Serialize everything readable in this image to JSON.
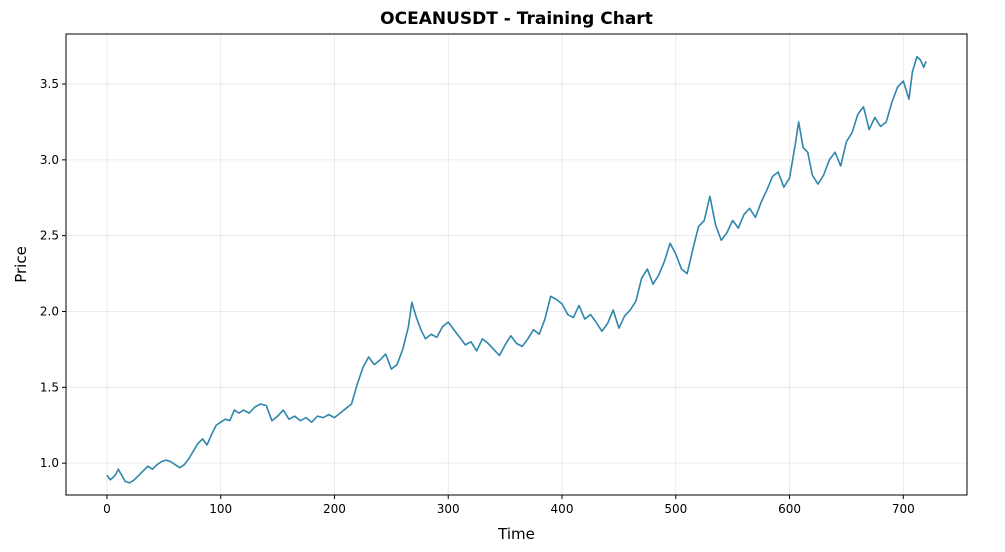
{
  "chart_data": {
    "type": "line",
    "title": "OCEANUSDT - Training Chart",
    "xlabel": "Time",
    "ylabel": "Price",
    "xlim": [
      -36,
      756
    ],
    "ylim": [
      0.79,
      3.83
    ],
    "x_ticks": [
      0,
      100,
      200,
      300,
      400,
      500,
      600,
      700
    ],
    "x_tick_labels": [
      "0",
      "100",
      "200",
      "300",
      "400",
      "500",
      "600",
      "700"
    ],
    "y_ticks": [
      1.0,
      1.5,
      2.0,
      2.5,
      3.0,
      3.5
    ],
    "y_tick_labels": [
      "1.0",
      "1.5",
      "2.0",
      "2.5",
      "3.0",
      "3.5"
    ],
    "grid": true,
    "series": [
      {
        "color": "#2E86AB",
        "x": [
          0,
          3,
          6,
          8,
          10,
          13,
          16,
          20,
          24,
          28,
          32,
          36,
          40,
          44,
          48,
          52,
          56,
          60,
          64,
          68,
          72,
          76,
          80,
          84,
          88,
          92,
          96,
          100,
          104,
          108,
          112,
          116,
          120,
          125,
          130,
          135,
          140,
          145,
          150,
          155,
          160,
          165,
          170,
          175,
          180,
          185,
          190,
          195,
          200,
          205,
          210,
          215,
          220,
          225,
          230,
          235,
          240,
          245,
          250,
          255,
          260,
          265,
          268,
          272,
          276,
          280,
          285,
          290,
          295,
          300,
          305,
          310,
          315,
          320,
          325,
          330,
          335,
          340,
          345,
          350,
          355,
          360,
          365,
          370,
          375,
          380,
          385,
          390,
          395,
          400,
          405,
          410,
          415,
          420,
          425,
          430,
          435,
          440,
          445,
          450,
          455,
          460,
          465,
          470,
          475,
          480,
          485,
          490,
          495,
          500,
          505,
          510,
          515,
          520,
          525,
          530,
          535,
          540,
          545,
          550,
          555,
          560,
          565,
          570,
          575,
          580,
          585,
          590,
          595,
          600,
          605,
          608,
          612,
          616,
          620,
          625,
          630,
          635,
          640,
          645,
          650,
          655,
          660,
          665,
          670,
          675,
          680,
          685,
          690,
          695,
          700,
          705,
          708,
          712,
          715,
          718,
          720
        ],
        "y": [
          0.92,
          0.89,
          0.91,
          0.93,
          0.96,
          0.92,
          0.88,
          0.87,
          0.89,
          0.92,
          0.95,
          0.98,
          0.96,
          0.99,
          1.01,
          1.02,
          1.01,
          0.99,
          0.97,
          0.99,
          1.03,
          1.08,
          1.13,
          1.16,
          1.12,
          1.19,
          1.25,
          1.27,
          1.29,
          1.28,
          1.35,
          1.33,
          1.35,
          1.33,
          1.37,
          1.39,
          1.38,
          1.28,
          1.31,
          1.35,
          1.29,
          1.31,
          1.28,
          1.3,
          1.27,
          1.31,
          1.3,
          1.32,
          1.3,
          1.33,
          1.36,
          1.39,
          1.52,
          1.63,
          1.7,
          1.65,
          1.68,
          1.72,
          1.62,
          1.65,
          1.75,
          1.9,
          2.06,
          1.96,
          1.88,
          1.82,
          1.85,
          1.83,
          1.9,
          1.93,
          1.88,
          1.83,
          1.78,
          1.8,
          1.74,
          1.82,
          1.79,
          1.75,
          1.71,
          1.78,
          1.84,
          1.79,
          1.77,
          1.82,
          1.88,
          1.85,
          1.95,
          2.1,
          2.08,
          2.05,
          1.98,
          1.96,
          2.04,
          1.95,
          1.98,
          1.93,
          1.87,
          1.92,
          2.01,
          1.89,
          1.97,
          2.01,
          2.07,
          2.22,
          2.28,
          2.18,
          2.24,
          2.33,
          2.45,
          2.38,
          2.28,
          2.25,
          2.41,
          2.56,
          2.6,
          2.76,
          2.57,
          2.47,
          2.52,
          2.6,
          2.55,
          2.64,
          2.68,
          2.62,
          2.72,
          2.8,
          2.89,
          2.92,
          2.82,
          2.88,
          3.1,
          3.25,
          3.08,
          3.05,
          2.9,
          2.84,
          2.9,
          3.0,
          3.05,
          2.96,
          3.12,
          3.18,
          3.3,
          3.35,
          3.2,
          3.28,
          3.22,
          3.25,
          3.38,
          3.48,
          3.52,
          3.4,
          3.58,
          3.68,
          3.66,
          3.61,
          3.65
        ]
      }
    ]
  }
}
